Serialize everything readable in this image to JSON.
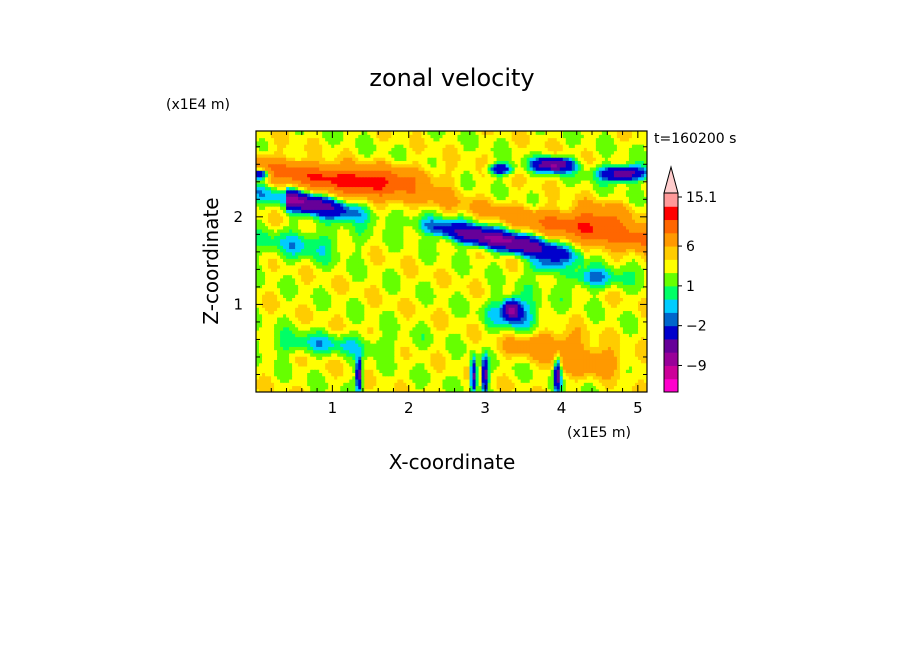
{
  "chart_data": {
    "type": "heatmap",
    "title": "zonal velocity",
    "xlabel": "X-coordinate",
    "ylabel": "Z-coordinate",
    "x_unit": "(x1E5 m)",
    "y_unit": "(x1E4 m)",
    "time_label": "t=160200 s",
    "xlim": [
      0,
      5.12
    ],
    "ylim": [
      0,
      2.98
    ],
    "x_ticks": [
      "1",
      "2",
      "3",
      "4",
      "5"
    ],
    "y_ticks": [
      "1",
      "2"
    ],
    "colorbar": {
      "tick_labels": [
        "15.1",
        "6",
        "1",
        "-2",
        "-9"
      ],
      "levels": [
        -15,
        -12,
        -9,
        -6,
        -3,
        -2,
        -1,
        0,
        1,
        2,
        3,
        6,
        9,
        12,
        15.1
      ],
      "colors": [
        "#ff00cc",
        "#cc0099",
        "#990099",
        "#660099",
        "#0000cc",
        "#0066cc",
        "#00ccff",
        "#00ff66",
        "#66ff00",
        "#ffff00",
        "#ffcc00",
        "#ff9900",
        "#ff6600",
        "#ff0000",
        "#ff9999",
        "#ffcccc"
      ]
    }
  }
}
